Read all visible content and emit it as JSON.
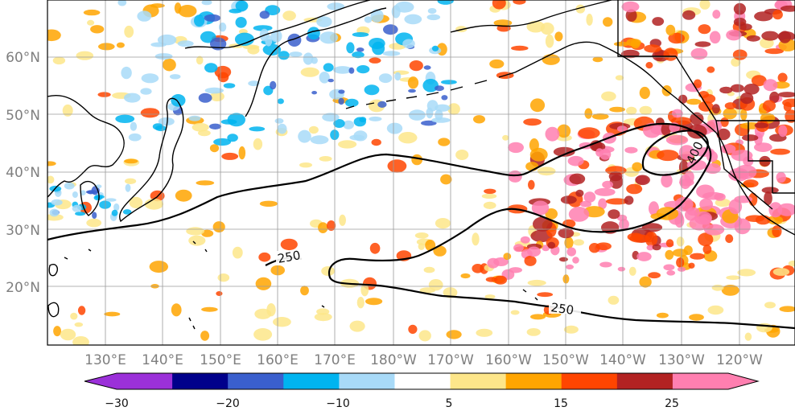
{
  "map": {
    "lon_labels": [
      "130°E",
      "140°E",
      "150°E",
      "160°E",
      "170°E",
      "180°W",
      "170°W",
      "160°W",
      "150°W",
      "140°W",
      "130°W",
      "120°W"
    ],
    "lat_labels": [
      "60°N",
      "50°N",
      "40°N",
      "30°N",
      "20°N"
    ],
    "contour_labels": [
      "250",
      "250",
      "400"
    ],
    "colorbar": {
      "labels": [
        "−30",
        "−20",
        "−10",
        "5",
        "15",
        "25"
      ],
      "colors": [
        "#9b30d9",
        "#00008b",
        "#3a5fcd",
        "#00b4f0",
        "#a8daf8",
        "#ffffff",
        "#fde68a",
        "#ffa500",
        "#ff4500",
        "#b22222",
        "#ff7fb0"
      ]
    }
  }
}
